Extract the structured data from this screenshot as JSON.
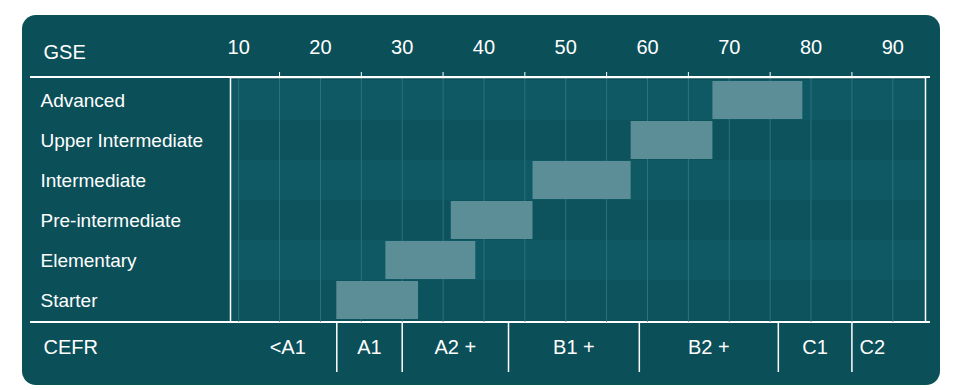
{
  "chart_data": {
    "type": "range_bar",
    "orientation": "horizontal",
    "xlabel": "GSE",
    "xlim": [
      9,
      94
    ],
    "xticks": [
      10,
      20,
      30,
      40,
      50,
      60,
      70,
      80,
      90
    ],
    "xticks_minor": [
      15,
      25,
      35,
      45,
      55,
      65,
      75,
      85
    ],
    "grid": true,
    "categories": [
      "Advanced",
      "Upper Intermediate",
      "Intermediate",
      "Pre-intermediate",
      "Elementary",
      "Starter"
    ],
    "starts": [
      68,
      58,
      46,
      36,
      28,
      22
    ],
    "ends": [
      79,
      68,
      58,
      46,
      39,
      32
    ],
    "color": "#5b8e96",
    "cefr": {
      "label": "CEFR",
      "bands": [
        {
          "label": "<A1",
          "start": 10,
          "end": 22
        },
        {
          "label": "A1",
          "start": 22,
          "end": 30
        },
        {
          "label": "A2 +",
          "start": 30,
          "end": 43
        },
        {
          "label": "B1 +",
          "start": 43,
          "end": 59
        },
        {
          "label": "B2 +",
          "start": 59,
          "end": 76
        },
        {
          "label": "C1",
          "start": 76,
          "end": 85
        },
        {
          "label": "C2",
          "start": 85,
          "end": 90
        }
      ]
    }
  }
}
